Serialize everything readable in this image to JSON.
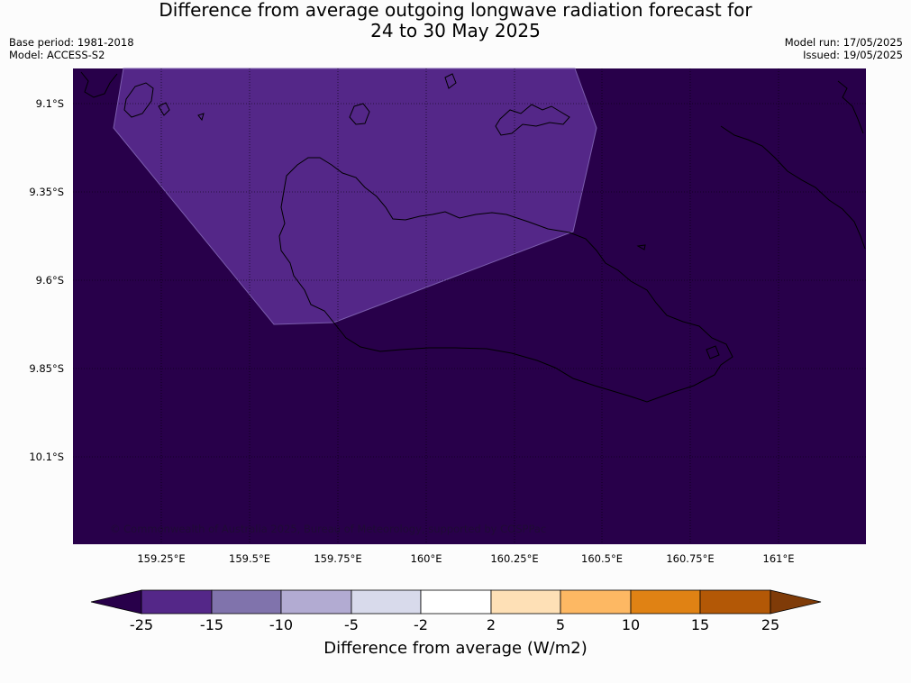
{
  "header": {
    "title_line1": "Difference from average outgoing longwave radiation forecast for",
    "title_line2": "24 to 30 May 2025",
    "base_period": "Base period: 1981-2018",
    "model": "Model: ACCESS-S2",
    "model_run": "Model run: 17/05/2025",
    "issued": "Issued: 19/05/2025"
  },
  "map": {
    "background_color": "#28004a",
    "anomaly_fill_color": "#542788",
    "coastline_color": "#000000",
    "gridline_style": "dotted",
    "lat_labels": [
      "9.1°S",
      "9.35°S",
      "9.6°S",
      "9.85°S",
      "10.1°S"
    ],
    "lon_labels": [
      "159.25°E",
      "159.5°E",
      "159.75°E",
      "160°E",
      "160.25°E",
      "160.5°E",
      "160.75°E",
      "161°E"
    ],
    "copyright": "© Commonwealth of Australia 2025, Bureau of Meteorology, supported by COSPPac"
  },
  "colorbar": {
    "title": "Difference from average (W/m2)",
    "ticks": [
      "-25",
      "-15",
      "-10",
      "-5",
      "-2",
      "2",
      "5",
      "10",
      "15",
      "25"
    ],
    "low_extend_color": "#28004a",
    "high_extend_color": "#7f3b08",
    "colors": [
      "#542788",
      "#8073ac",
      "#b2abd2",
      "#d8daeb",
      "#ffffff",
      "#fee0b6",
      "#fdb863",
      "#e08214",
      "#b35806"
    ]
  }
}
